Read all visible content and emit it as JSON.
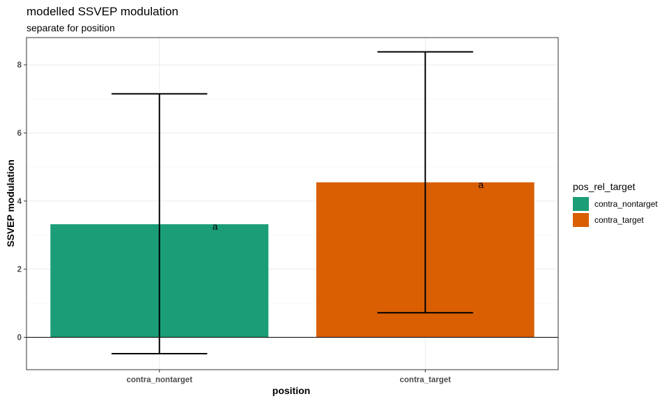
{
  "chart_data": {
    "type": "bar",
    "title": "modelled SSVEP modulation",
    "subtitle": "separate for position",
    "xlabel": "position",
    "ylabel": "SSVEP modulation",
    "categories": [
      "contra_nontarget",
      "contra_target"
    ],
    "values": [
      3.32,
      4.55
    ],
    "error_low": [
      -0.48,
      0.72
    ],
    "error_high": [
      7.15,
      8.38
    ],
    "annotations": [
      "a",
      "a"
    ],
    "colors": [
      "#1b9e77",
      "#d95f02"
    ],
    "ylim": [
      -0.95,
      8.8
    ],
    "yticks": [
      0,
      2,
      4,
      6,
      8
    ],
    "grid": true,
    "legend": {
      "title": "pos_rel_target",
      "position": "right",
      "entries": [
        "contra_nontarget",
        "contra_target"
      ]
    }
  }
}
